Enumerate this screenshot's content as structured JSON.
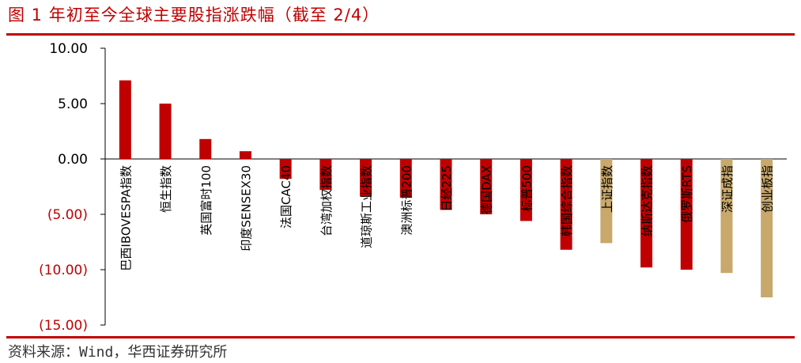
{
  "title": "图 1  年初至今全球主要股指涨跌幅（截至 2/4）",
  "source": "资料来源：Wind，华西证券研究所",
  "colors": {
    "accent": "#c00000",
    "positive_bar": "#c00000",
    "negative_bar": "#c00000",
    "china_bar": "#c8a86b",
    "negative_tick": "#c00000"
  },
  "chart_data": {
    "type": "bar",
    "categories": [
      "巴西IBOVESPA指数",
      "恒生指数",
      "英国富时100",
      "印度SENSEX30",
      "法国CAC40",
      "台湾加权指数",
      "道琼斯工业指数",
      "澳洲标普200",
      "日经225",
      "德国DAX",
      "标普500",
      "韩国综合指数",
      "上证指数",
      "纳斯达克指数",
      "俄罗斯RTS",
      "深证成指",
      "创业板指"
    ],
    "values": [
      7.1,
      5.0,
      1.8,
      0.7,
      -1.8,
      -2.8,
      -3.4,
      -3.5,
      -4.6,
      -5.0,
      -5.6,
      -8.2,
      -7.6,
      -9.8,
      -10.0,
      -10.3,
      -12.5
    ],
    "highlight": [
      false,
      false,
      false,
      false,
      false,
      false,
      false,
      false,
      false,
      false,
      false,
      false,
      true,
      false,
      false,
      true,
      true
    ],
    "ylim": [
      -15,
      10
    ],
    "yticks": [
      10,
      5,
      0,
      -5,
      -10,
      -15
    ],
    "ytick_labels": [
      "10.00",
      "5.00",
      "0.00",
      "(5.00)",
      "(10.00)",
      "(15.00)"
    ],
    "grid": false,
    "legend": "none"
  }
}
